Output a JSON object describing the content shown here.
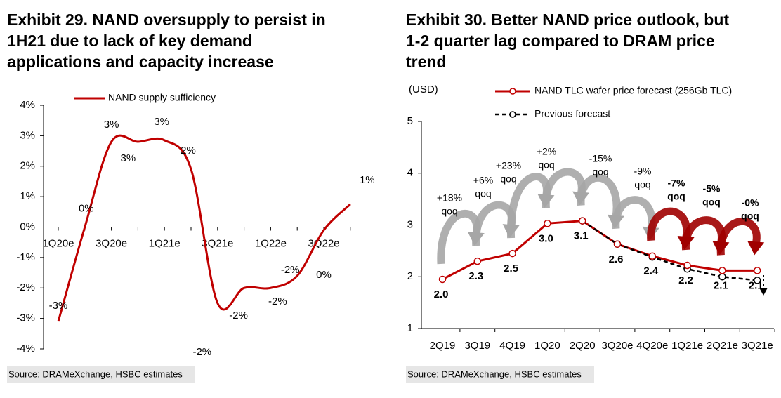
{
  "chart_data": [
    {
      "type": "line",
      "title": [
        "Exhibit 29. NAND oversupply to persist in",
        "1H21 due to lack of key demand",
        "applications and capacity increase"
      ],
      "categories": [
        "1Q20e",
        null,
        "3Q20e",
        null,
        "1Q21e",
        null,
        "3Q21e",
        null,
        "1Q22e",
        null,
        "3Q22e",
        null
      ],
      "series": [
        {
          "name": "NAND supply sufficiency",
          "color": "#c00000",
          "values": [
            -3.1,
            0.0,
            2.8,
            2.8,
            2.85,
            1.9,
            -2.5,
            -2.0,
            -2.0,
            -1.6,
            -0.1,
            0.75
          ],
          "value_labels": [
            "-3%",
            "0%",
            "3%",
            "3%",
            "3%",
            "2%",
            "-2%",
            "-2%",
            "-2%",
            "-2%",
            "0%",
            "1%"
          ]
        }
      ],
      "ylim": [
        -4,
        4
      ],
      "yticks": [
        {
          "value": -4,
          "label": "-4%"
        },
        {
          "value": -3,
          "label": "-3%"
        },
        {
          "value": -2,
          "label": "-2%"
        },
        {
          "value": -1,
          "label": "-1%"
        },
        {
          "value": 0,
          "label": "0%"
        },
        {
          "value": 1,
          "label": "1%"
        },
        {
          "value": 2,
          "label": "2%"
        },
        {
          "value": 3,
          "label": "3%"
        },
        {
          "value": 4,
          "label": "4%"
        }
      ],
      "source": "Source: DRAMeXchange, HSBC estimates",
      "legend": "top-left"
    },
    {
      "type": "line",
      "title": [
        "Exhibit 30. Better NAND price outlook, but",
        "1-2 quarter lag compared to DRAM price",
        "trend"
      ],
      "y_label": "(USD)",
      "categories": [
        "2Q19",
        "3Q19",
        "4Q19",
        "1Q20",
        "2Q20",
        "3Q20e",
        "4Q20e",
        "1Q21e",
        "2Q21e",
        "3Q21e"
      ],
      "series": [
        {
          "name": "NAND TLC wafer price forecast (256Gb TLC)",
          "color": "#c00000",
          "values": [
            1.95,
            2.3,
            2.45,
            3.03,
            3.08,
            2.63,
            2.4,
            2.22,
            2.12,
            2.12
          ],
          "value_labels": [
            "2.0",
            "2.3",
            "2.5",
            "3.0",
            "3.1",
            "2.6",
            "2.4",
            "2.2",
            "2.1",
            "2.1"
          ]
        },
        {
          "name": "Previous forecast",
          "color": "#000000",
          "values": [
            null,
            null,
            null,
            null,
            3.08,
            2.63,
            2.38,
            2.15,
            2.0,
            1.93
          ]
        }
      ],
      "annotations": [
        {
          "lines": [
            "+18%",
            "qoq"
          ],
          "color": "#000000"
        },
        {
          "lines": [
            "+6%",
            "qoq"
          ],
          "color": "#000000"
        },
        {
          "lines": [
            "+23%",
            "qoq"
          ],
          "color": "#000000"
        },
        {
          "lines": [
            "+2%",
            "qoq"
          ],
          "color": "#000000"
        },
        {
          "lines": [
            "-15%",
            "qoq"
          ],
          "color": "#000000"
        },
        {
          "lines": [
            "-9%",
            "qoq"
          ],
          "color": "#000000"
        },
        {
          "lines": [
            "-7%",
            "qoq"
          ],
          "color": "#c00000"
        },
        {
          "lines": [
            "-5%",
            "qoq"
          ],
          "color": "#c00000"
        },
        {
          "lines": [
            "-0%",
            "qoq"
          ],
          "color": "#c00000"
        }
      ],
      "ylim": [
        1,
        5
      ],
      "yticks": [
        1,
        2,
        3,
        4,
        5
      ],
      "source": "Source: DRAMeXchange, HSBC estimates",
      "legend": "top"
    }
  ]
}
